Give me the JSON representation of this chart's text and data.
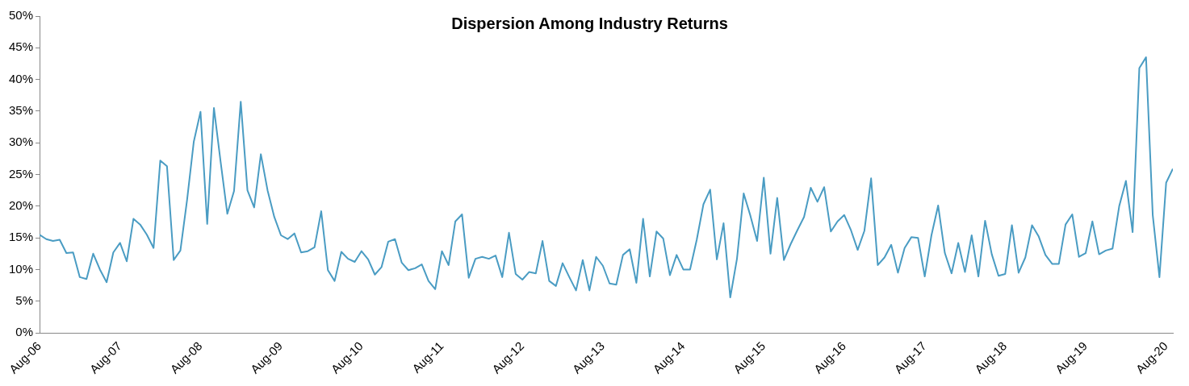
{
  "chart_data": {
    "type": "line",
    "title": "Dispersion Among Industry Returns",
    "x": [
      "2006-08",
      "2006-09",
      "2006-10",
      "2006-11",
      "2006-12",
      "2007-01",
      "2007-02",
      "2007-03",
      "2007-04",
      "2007-05",
      "2007-06",
      "2007-07",
      "2007-08",
      "2007-09",
      "2007-10",
      "2007-11",
      "2007-12",
      "2008-01",
      "2008-02",
      "2008-03",
      "2008-04",
      "2008-05",
      "2008-06",
      "2008-07",
      "2008-08",
      "2008-09",
      "2008-10",
      "2008-11",
      "2008-12",
      "2009-01",
      "2009-02",
      "2009-03",
      "2009-04",
      "2009-05",
      "2009-06",
      "2009-07",
      "2009-08",
      "2009-09",
      "2009-10",
      "2009-11",
      "2009-12",
      "2010-01",
      "2010-02",
      "2010-03",
      "2010-04",
      "2010-05",
      "2010-06",
      "2010-07",
      "2010-08",
      "2010-09",
      "2010-10",
      "2010-11",
      "2010-12",
      "2011-01",
      "2011-02",
      "2011-03",
      "2011-04",
      "2011-05",
      "2011-06",
      "2011-07",
      "2011-08",
      "2011-09",
      "2011-10",
      "2011-11",
      "2011-12",
      "2012-01",
      "2012-02",
      "2012-03",
      "2012-04",
      "2012-05",
      "2012-06",
      "2012-07",
      "2012-08",
      "2012-09",
      "2012-10",
      "2012-11",
      "2012-12",
      "2013-01",
      "2013-02",
      "2013-03",
      "2013-04",
      "2013-05",
      "2013-06",
      "2013-07",
      "2013-08",
      "2013-09",
      "2013-10",
      "2013-11",
      "2013-12",
      "2014-01",
      "2014-02",
      "2014-03",
      "2014-04",
      "2014-05",
      "2014-06",
      "2014-07",
      "2014-08",
      "2014-09",
      "2014-10",
      "2014-11",
      "2014-12",
      "2015-01",
      "2015-02",
      "2015-03",
      "2015-04",
      "2015-05",
      "2015-06",
      "2015-07",
      "2015-08",
      "2015-09",
      "2015-10",
      "2015-11",
      "2015-12",
      "2016-01",
      "2016-02",
      "2016-03",
      "2016-04",
      "2016-05",
      "2016-06",
      "2016-07",
      "2016-08",
      "2016-09",
      "2016-10",
      "2016-11",
      "2016-12",
      "2017-01",
      "2017-02",
      "2017-03",
      "2017-04",
      "2017-05",
      "2017-06",
      "2017-07",
      "2017-08",
      "2017-09",
      "2017-10",
      "2017-11",
      "2017-12",
      "2018-01",
      "2018-02",
      "2018-03",
      "2018-04",
      "2018-05",
      "2018-06",
      "2018-07",
      "2018-08",
      "2018-09",
      "2018-10",
      "2018-11",
      "2018-12",
      "2019-01",
      "2019-02",
      "2019-03",
      "2019-04",
      "2019-05",
      "2019-06",
      "2019-07",
      "2019-08",
      "2019-09",
      "2019-10",
      "2019-11",
      "2019-12",
      "2020-01",
      "2020-02",
      "2020-03",
      "2020-04",
      "2020-05",
      "2020-06",
      "2020-07",
      "2020-08",
      "2020-09"
    ],
    "series": [
      {
        "color": "#4a9cc3",
        "values": [
          15.5,
          14.8,
          14.5,
          14.7,
          12.6,
          12.7,
          8.8,
          8.5,
          12.5,
          10.0,
          8.0,
          12.7,
          14.2,
          11.3,
          18.0,
          17.1,
          15.5,
          13.4,
          27.2,
          26.3,
          11.5,
          13.0,
          21.0,
          30.2,
          34.9,
          17.2,
          35.5,
          27.0,
          18.8,
          22.4,
          36.5,
          22.5,
          19.8,
          28.2,
          22.5,
          18.3,
          15.4,
          14.8,
          15.7,
          12.7,
          12.9,
          13.5,
          19.2,
          9.9,
          8.2,
          12.8,
          11.7,
          11.2,
          12.9,
          11.6,
          9.2,
          10.4,
          14.4,
          14.8,
          11.1,
          9.9,
          10.2,
          10.8,
          8.2,
          6.9,
          12.9,
          10.7,
          17.6,
          18.7,
          8.7,
          11.7,
          12.0,
          11.7,
          12.2,
          8.8,
          15.8,
          9.3,
          8.4,
          9.6,
          9.4,
          14.5,
          8.2,
          7.4,
          11.0,
          8.8,
          6.7,
          11.5,
          6.7,
          12.0,
          10.6,
          7.8,
          7.6,
          12.3,
          13.2,
          7.9,
          18.0,
          8.9,
          16.0,
          14.9,
          9.1,
          12.3,
          10.0,
          10.0,
          14.7,
          20.3,
          22.6,
          11.6,
          17.3,
          5.6,
          11.7,
          22.0,
          18.5,
          14.5,
          24.5,
          12.5,
          21.3,
          11.5,
          14.0,
          16.2,
          18.3,
          22.9,
          20.7,
          23.0,
          16.0,
          17.6,
          18.6,
          16.2,
          13.1,
          16.1,
          24.4,
          10.7,
          11.9,
          13.9,
          9.5,
          13.4,
          15.1,
          15.0,
          8.9,
          15.4,
          20.1,
          12.6,
          9.4,
          14.2,
          9.6,
          15.4,
          8.9,
          17.7,
          12.4,
          9.0,
          9.3,
          17.0,
          9.5,
          11.9,
          17.0,
          15.2,
          12.3,
          10.9,
          10.9,
          17.1,
          18.7,
          12.0,
          12.6,
          17.6,
          12.4,
          13.0,
          13.3,
          20.0,
          24.0,
          15.9,
          41.8,
          43.5,
          18.6,
          8.8,
          23.7,
          25.9
        ]
      }
    ],
    "xlim": [
      "2006-08",
      "2020-09"
    ],
    "xticks": [
      {
        "value": "2006-08",
        "label": "Aug-06"
      },
      {
        "value": "2007-08",
        "label": "Aug-07"
      },
      {
        "value": "2008-08",
        "label": "Aug-08"
      },
      {
        "value": "2009-08",
        "label": "Aug-09"
      },
      {
        "value": "2010-08",
        "label": "Aug-10"
      },
      {
        "value": "2011-08",
        "label": "Aug-11"
      },
      {
        "value": "2012-08",
        "label": "Aug-12"
      },
      {
        "value": "2013-08",
        "label": "Aug-13"
      },
      {
        "value": "2014-08",
        "label": "Aug-14"
      },
      {
        "value": "2015-08",
        "label": "Aug-15"
      },
      {
        "value": "2016-08",
        "label": "Aug-16"
      },
      {
        "value": "2017-08",
        "label": "Aug-17"
      },
      {
        "value": "2018-08",
        "label": "Aug-18"
      },
      {
        "value": "2019-08",
        "label": "Aug-19"
      },
      {
        "value": "2020-08",
        "label": "Aug-20"
      }
    ],
    "ylim": [
      0,
      50
    ],
    "yticks": [
      {
        "value": 0,
        "label": "0%"
      },
      {
        "value": 5,
        "label": "5%"
      },
      {
        "value": 10,
        "label": "10%"
      },
      {
        "value": 15,
        "label": "15%"
      },
      {
        "value": 20,
        "label": "20%"
      },
      {
        "value": 25,
        "label": "25%"
      },
      {
        "value": 30,
        "label": "30%"
      },
      {
        "value": 35,
        "label": "35%"
      },
      {
        "value": 40,
        "label": "40%"
      },
      {
        "value": 45,
        "label": "45%"
      },
      {
        "value": 50,
        "label": "50%"
      }
    ],
    "grid": false,
    "legend": false,
    "marker": "none",
    "line_style": "solid"
  }
}
